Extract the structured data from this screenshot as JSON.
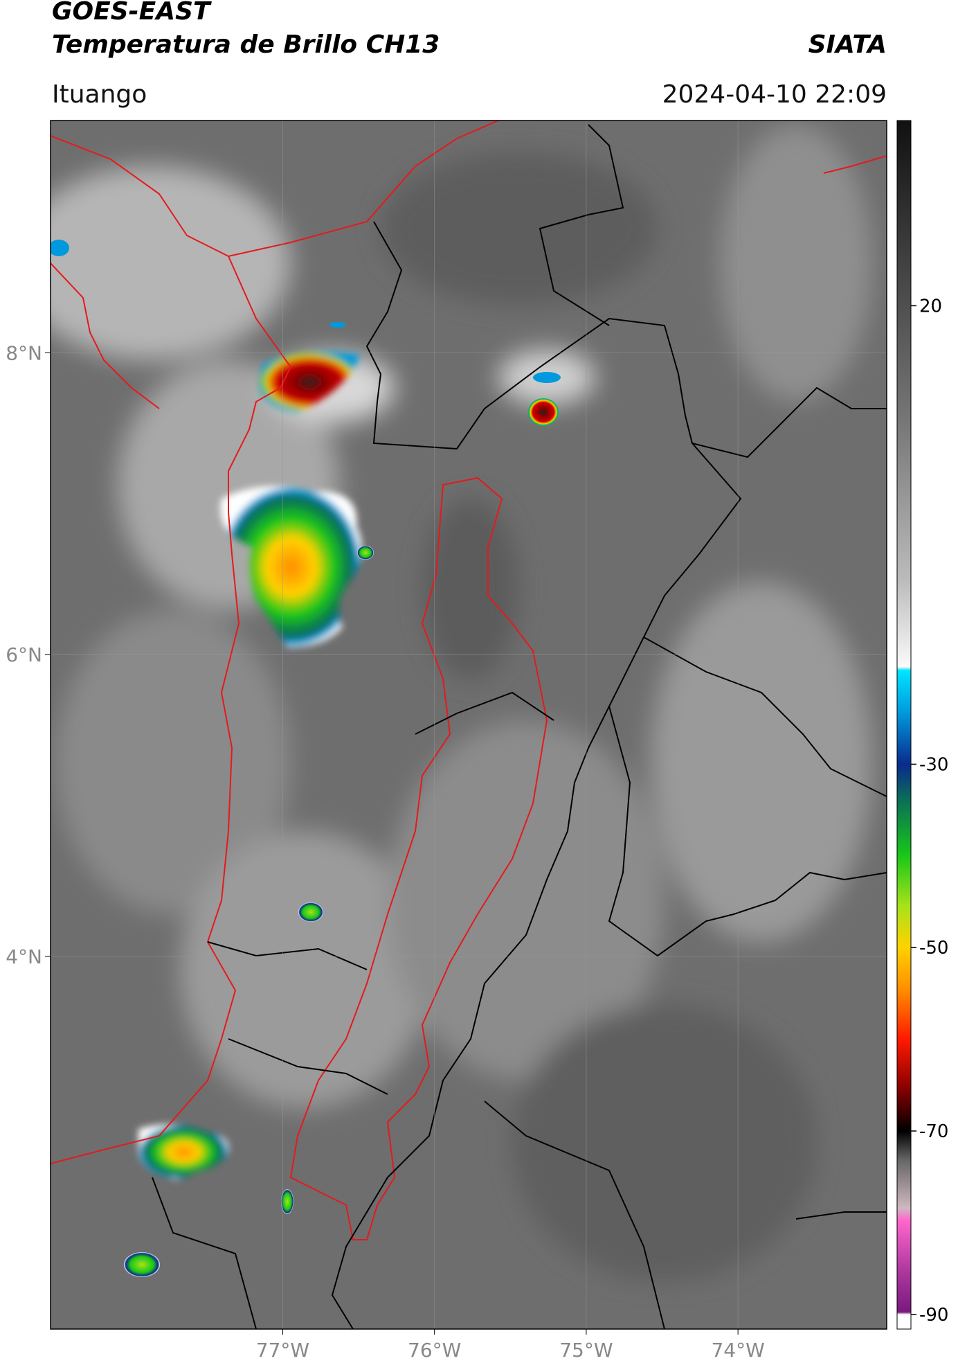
{
  "header": {
    "title": "GOES-EAST",
    "subtitle": "Temperatura de Brillo CH13",
    "brand": "SIATA",
    "place": "Ituango",
    "datetime": "2024-04-10 22:09"
  },
  "map": {
    "xlim": [
      -78.53,
      -73.02
    ],
    "ylim": [
      1.53,
      9.54
    ],
    "xticks": [
      {
        "value": -77,
        "label": "77°W"
      },
      {
        "value": -76,
        "label": "76°W"
      },
      {
        "value": -75,
        "label": "75°W"
      },
      {
        "value": -74,
        "label": "74°W"
      }
    ],
    "yticks": [
      {
        "value": 8,
        "label": "8°N"
      },
      {
        "value": 6,
        "label": "6°N"
      },
      {
        "value": 4,
        "label": "4°N"
      }
    ],
    "grid": true
  },
  "colorbar": {
    "lim": [
      -91.6,
      40.2
    ],
    "ticks": [
      20,
      -30,
      -50,
      -70,
      -90
    ]
  }
}
